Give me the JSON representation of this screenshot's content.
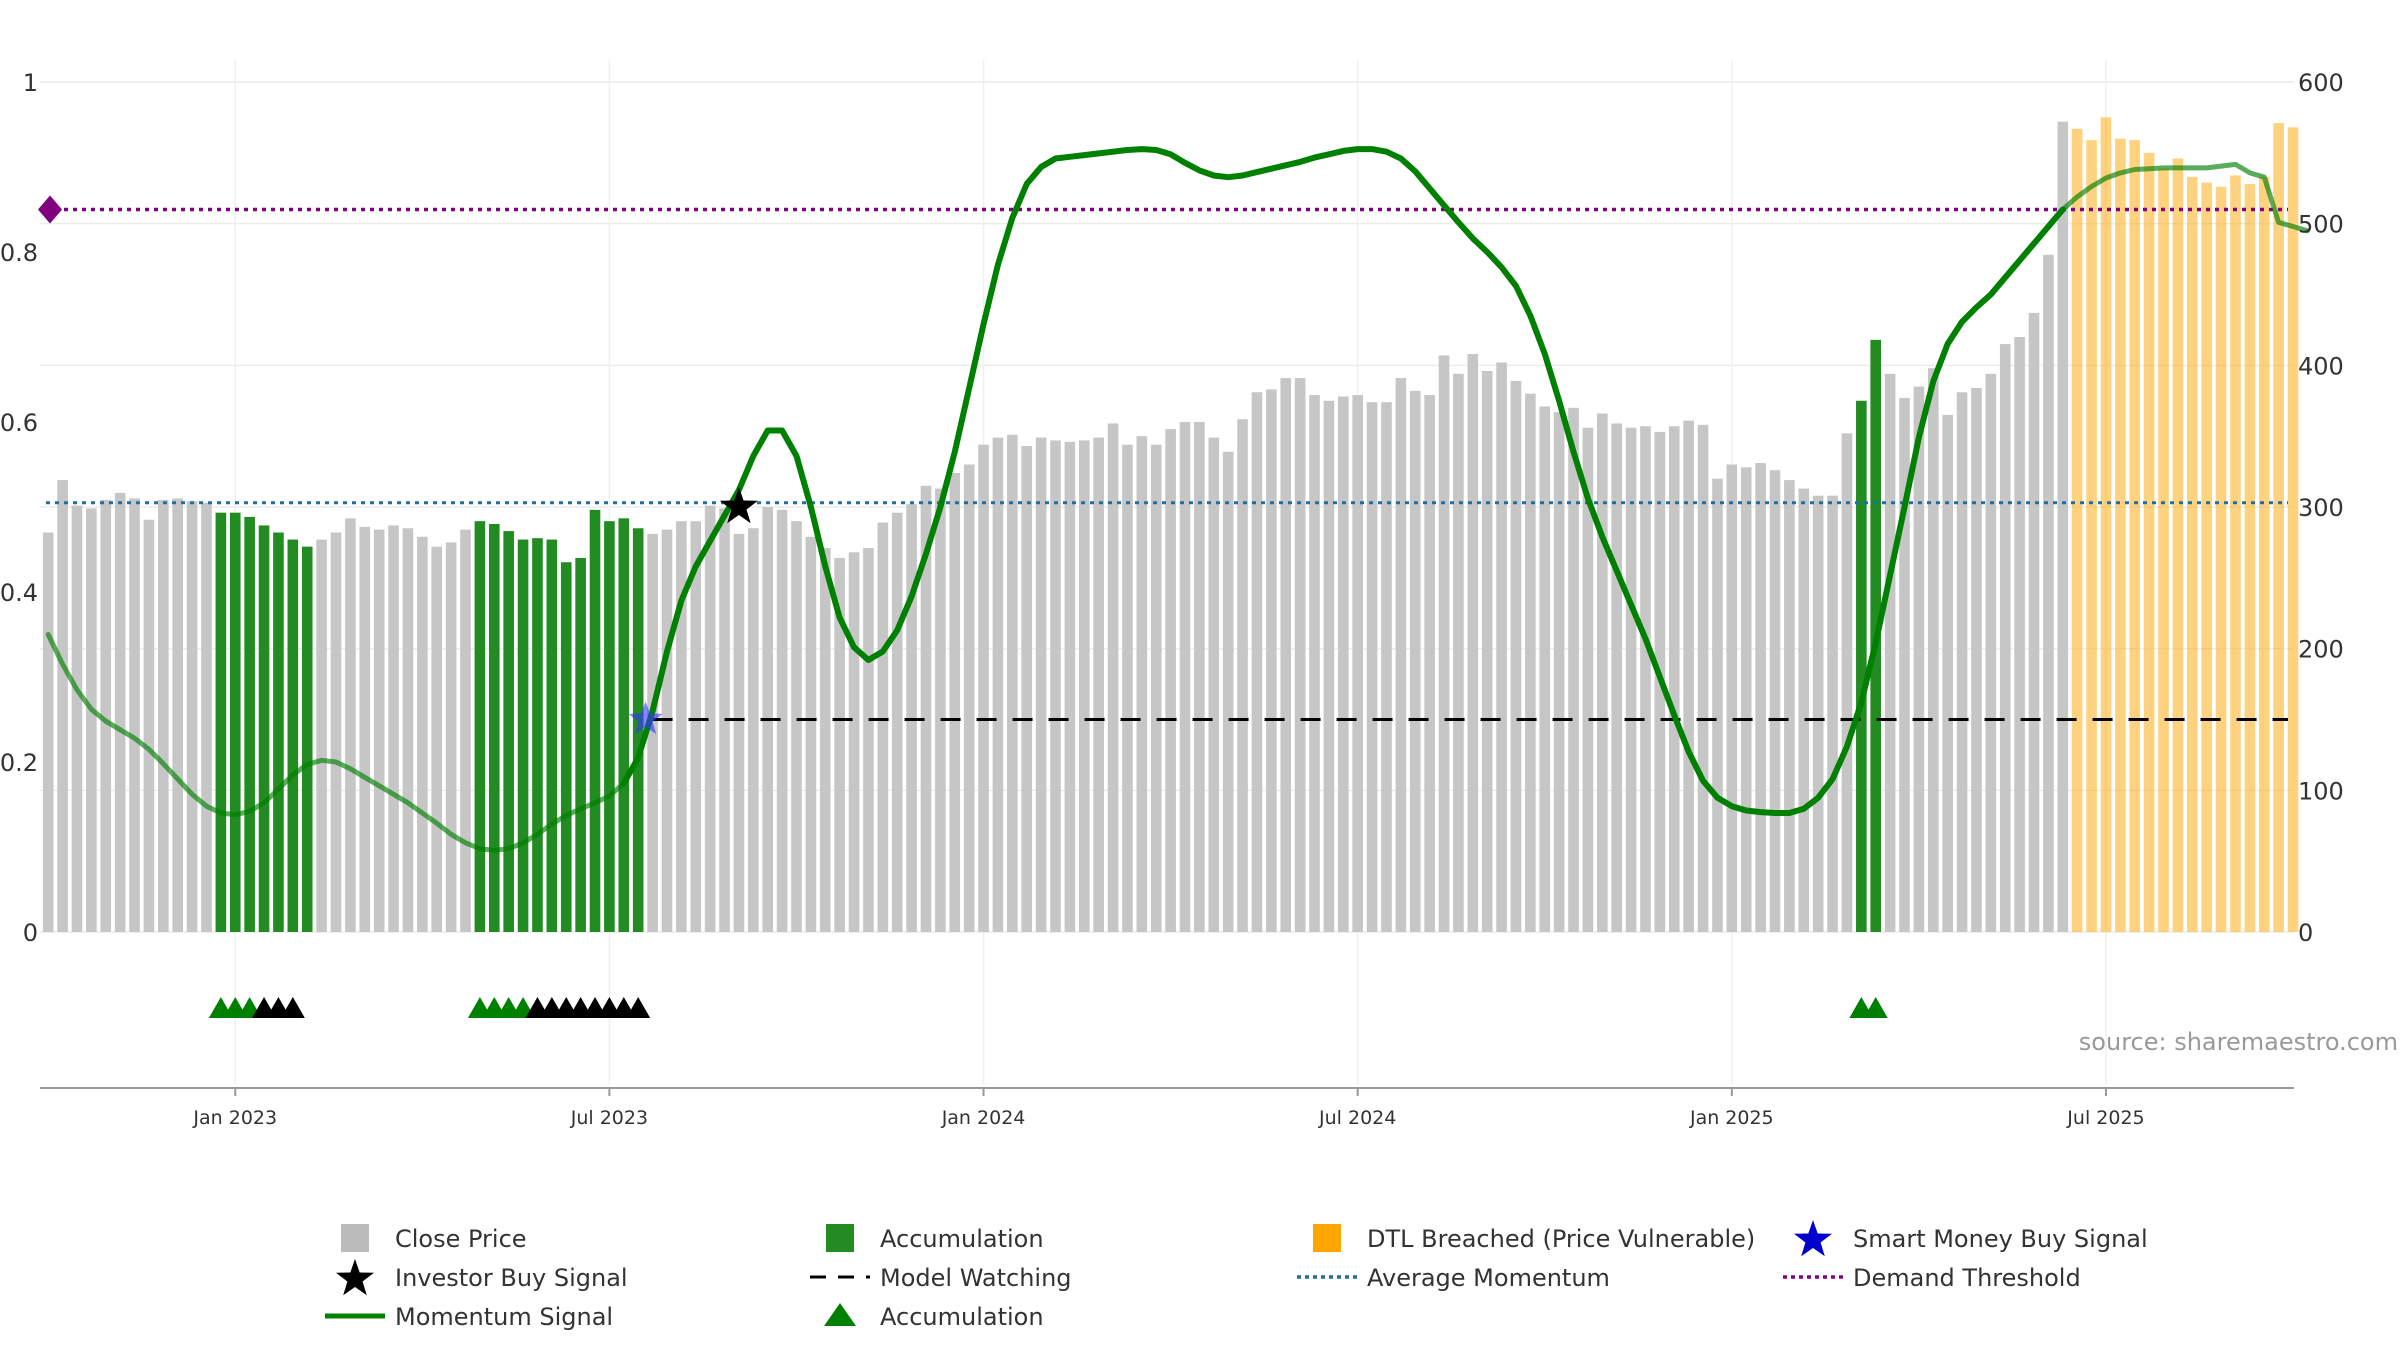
{
  "chart_data": {
    "type": "bar",
    "title": "",
    "source_label": "source: sharemaestro.com",
    "left_axis": {
      "range": [
        0,
        1
      ],
      "ticks": [
        "0",
        "0.2",
        "0.4",
        "0.6",
        "0.8",
        "1"
      ]
    },
    "right_axis": {
      "range": [
        0,
        600
      ],
      "ticks": [
        "0",
        "100",
        "200",
        "300",
        "400",
        "500",
        "600"
      ]
    },
    "x_axis": {
      "ticks": [
        {
          "label": "Jan 2023",
          "bar_index": 13.5
        },
        {
          "label": "Jul 2023",
          "bar_index": 39.5
        },
        {
          "label": "Jan 2024",
          "bar_index": 65.5
        },
        {
          "label": "Jul 2024",
          "bar_index": 91.5
        },
        {
          "label": "Jan 2025",
          "bar_index": 117.5
        },
        {
          "label": "Jul 2025",
          "bar_index": 143.5
        }
      ]
    },
    "close_price": [
      282,
      319,
      301,
      299,
      305,
      310,
      306,
      291,
      305,
      306,
      304,
      303,
      296,
      296,
      293,
      287,
      282,
      277,
      272,
      277,
      282,
      292,
      286,
      284,
      287,
      285,
      279,
      272,
      275,
      284,
      290,
      288,
      283,
      277,
      278,
      277,
      261,
      264,
      298,
      290,
      292,
      285,
      281,
      284,
      290,
      290,
      301,
      299,
      281,
      285,
      300,
      298,
      290,
      279,
      271,
      264,
      268,
      271,
      289,
      296,
      302,
      315,
      313,
      324,
      330,
      344,
      349,
      351,
      343,
      349,
      347,
      346,
      347,
      349,
      359,
      344,
      350,
      344,
      355,
      360,
      360,
      349,
      339,
      362,
      381,
      383,
      391,
      391,
      379,
      375,
      378,
      379,
      374,
      374,
      391,
      382,
      379,
      407,
      394,
      408,
      396,
      402,
      389,
      380,
      371,
      367,
      370,
      356,
      366,
      359,
      356,
      357,
      353,
      357,
      361,
      358,
      320,
      330,
      328,
      331,
      326,
      319,
      313,
      308,
      308,
      352,
      375,
      418,
      394,
      377,
      385,
      398,
      365,
      381,
      384,
      394,
      415,
      420,
      437,
      478,
      572,
      567,
      559,
      575,
      560,
      559,
      550,
      539,
      546,
      533,
      529,
      526,
      534,
      528,
      533,
      571,
      568
    ],
    "accumulation_bars": [
      [
        12,
        18
      ],
      [
        30,
        41
      ],
      [
        126,
        127
      ]
    ],
    "dtl_breached_start": 141,
    "momentum_signal": [
      [
        0,
        0.35
      ],
      [
        1,
        0.315
      ],
      [
        2,
        0.285
      ],
      [
        3,
        0.262
      ],
      [
        4,
        0.248
      ],
      [
        5,
        0.238
      ],
      [
        6,
        0.228
      ],
      [
        7,
        0.215
      ],
      [
        8,
        0.198
      ],
      [
        9,
        0.18
      ],
      [
        10,
        0.162
      ],
      [
        11,
        0.148
      ],
      [
        12,
        0.14
      ],
      [
        13,
        0.138
      ],
      [
        14,
        0.142
      ],
      [
        15,
        0.152
      ],
      [
        16,
        0.168
      ],
      [
        17,
        0.185
      ],
      [
        18,
        0.197
      ],
      [
        19,
        0.202
      ],
      [
        20,
        0.2
      ],
      [
        21,
        0.192
      ],
      [
        22,
        0.182
      ],
      [
        23,
        0.172
      ],
      [
        24,
        0.162
      ],
      [
        25,
        0.152
      ],
      [
        26,
        0.14
      ],
      [
        27,
        0.128
      ],
      [
        28,
        0.115
      ],
      [
        29,
        0.105
      ],
      [
        30,
        0.098
      ],
      [
        31,
        0.096
      ],
      [
        32,
        0.098
      ],
      [
        33,
        0.105
      ],
      [
        34,
        0.115
      ],
      [
        35,
        0.127
      ],
      [
        36,
        0.137
      ],
      [
        37,
        0.145
      ],
      [
        38,
        0.152
      ],
      [
        39,
        0.16
      ],
      [
        40,
        0.175
      ],
      [
        41,
        0.205
      ],
      [
        42,
        0.26
      ],
      [
        43,
        0.33
      ],
      [
        44,
        0.39
      ],
      [
        45,
        0.43
      ],
      [
        46,
        0.46
      ],
      [
        47,
        0.49
      ],
      [
        48,
        0.52
      ],
      [
        49,
        0.56
      ],
      [
        50,
        0.59
      ],
      [
        51,
        0.59
      ],
      [
        52,
        0.56
      ],
      [
        53,
        0.5
      ],
      [
        54,
        0.43
      ],
      [
        55,
        0.37
      ],
      [
        56,
        0.335
      ],
      [
        57,
        0.32
      ],
      [
        58,
        0.33
      ],
      [
        59,
        0.355
      ],
      [
        60,
        0.395
      ],
      [
        61,
        0.445
      ],
      [
        62,
        0.5
      ],
      [
        63,
        0.565
      ],
      [
        64,
        0.64
      ],
      [
        65,
        0.715
      ],
      [
        66,
        0.785
      ],
      [
        67,
        0.84
      ],
      [
        68,
        0.88
      ],
      [
        69,
        0.9
      ],
      [
        70,
        0.91
      ],
      [
        71,
        0.912
      ],
      [
        72,
        0.914
      ],
      [
        73,
        0.916
      ],
      [
        74,
        0.918
      ],
      [
        75,
        0.92
      ],
      [
        76,
        0.921
      ],
      [
        77,
        0.92
      ],
      [
        78,
        0.915
      ],
      [
        79,
        0.905
      ],
      [
        80,
        0.896
      ],
      [
        81,
        0.89
      ],
      [
        82,
        0.888
      ],
      [
        83,
        0.89
      ],
      [
        84,
        0.894
      ],
      [
        85,
        0.898
      ],
      [
        86,
        0.902
      ],
      [
        87,
        0.906
      ],
      [
        88,
        0.911
      ],
      [
        89,
        0.915
      ],
      [
        90,
        0.919
      ],
      [
        91,
        0.921
      ],
      [
        92,
        0.921
      ],
      [
        93,
        0.918
      ],
      [
        94,
        0.91
      ],
      [
        95,
        0.895
      ],
      [
        96,
        0.875
      ],
      [
        97,
        0.855
      ],
      [
        98,
        0.835
      ],
      [
        99,
        0.816
      ],
      [
        100,
        0.8
      ],
      [
        101,
        0.782
      ],
      [
        102,
        0.76
      ],
      [
        103,
        0.725
      ],
      [
        104,
        0.68
      ],
      [
        105,
        0.625
      ],
      [
        106,
        0.565
      ],
      [
        107,
        0.51
      ],
      [
        108,
        0.465
      ],
      [
        109,
        0.425
      ],
      [
        110,
        0.385
      ],
      [
        111,
        0.345
      ],
      [
        112,
        0.3
      ],
      [
        113,
        0.255
      ],
      [
        114,
        0.212
      ],
      [
        115,
        0.178
      ],
      [
        116,
        0.158
      ],
      [
        117,
        0.148
      ],
      [
        118,
        0.143
      ],
      [
        119,
        0.141
      ],
      [
        120,
        0.14
      ],
      [
        121,
        0.14
      ],
      [
        122,
        0.145
      ],
      [
        123,
        0.158
      ],
      [
        124,
        0.18
      ],
      [
        125,
        0.218
      ],
      [
        126,
        0.27
      ],
      [
        127,
        0.34
      ],
      [
        128,
        0.42
      ],
      [
        129,
        0.5
      ],
      [
        130,
        0.582
      ],
      [
        131,
        0.648
      ],
      [
        132,
        0.692
      ],
      [
        133,
        0.718
      ],
      [
        134,
        0.735
      ],
      [
        135,
        0.75
      ],
      [
        136,
        0.77
      ],
      [
        137,
        0.79
      ],
      [
        138,
        0.81
      ],
      [
        139,
        0.83
      ],
      [
        140,
        0.85
      ],
      [
        141,
        0.865
      ],
      [
        142,
        0.877
      ],
      [
        143,
        0.887
      ],
      [
        144,
        0.893
      ],
      [
        145,
        0.897
      ],
      [
        146,
        0.898
      ],
      [
        147,
        0.899
      ],
      [
        148,
        0.899
      ],
      [
        149,
        0.899
      ],
      [
        150,
        0.899
      ],
      [
        151,
        0.901
      ],
      [
        152,
        0.903
      ],
      [
        153,
        0.893
      ],
      [
        154,
        0.888
      ],
      [
        155,
        0.835
      ],
      [
        156,
        0.83
      ],
      [
        157,
        0.825
      ]
    ],
    "momentum_bright_range": [
      40,
      140
    ],
    "average_momentum": 0.505,
    "demand_threshold": 0.85,
    "model_watching_level": 0.25,
    "model_watching_start": 42,
    "investor_buy_signal": [
      [
        48,
        0.5
      ]
    ],
    "smart_money_buy_signal": [
      [
        42,
        0.25
      ]
    ],
    "accumulation_markers": [
      {
        "index": 12,
        "color": "green"
      },
      {
        "index": 13,
        "color": "green"
      },
      {
        "index": 14,
        "color": "green"
      },
      {
        "index": 15,
        "color": "black"
      },
      {
        "index": 16,
        "color": "black"
      },
      {
        "index": 17,
        "color": "black"
      },
      {
        "index": 30,
        "color": "green"
      },
      {
        "index": 31,
        "color": "green"
      },
      {
        "index": 32,
        "color": "green"
      },
      {
        "index": 33,
        "color": "green"
      },
      {
        "index": 34,
        "color": "black"
      },
      {
        "index": 35,
        "color": "black"
      },
      {
        "index": 36,
        "color": "black"
      },
      {
        "index": 37,
        "color": "black"
      },
      {
        "index": 38,
        "color": "black"
      },
      {
        "index": 39,
        "color": "black"
      },
      {
        "index": 40,
        "color": "black"
      },
      {
        "index": 41,
        "color": "black"
      },
      {
        "index": 126,
        "color": "green"
      },
      {
        "index": 127,
        "color": "green"
      }
    ],
    "legend": [
      {
        "label": "Close Price",
        "kind": "square",
        "color": "#bbbbbb"
      },
      {
        "label": "Accumulation",
        "kind": "square",
        "color": "#228b22"
      },
      {
        "label": "DTL Breached (Price Vulnerable)",
        "kind": "square",
        "color": "#ffa500"
      },
      {
        "label": "Smart Money Buy Signal",
        "kind": "star",
        "color": "#0000cc"
      },
      {
        "label": "Investor Buy Signal",
        "kind": "star",
        "color": "#000000"
      },
      {
        "label": "Model Watching",
        "kind": "dash",
        "color": "#000000"
      },
      {
        "label": "Average Momentum",
        "kind": "dot",
        "color": "#1f6fa0"
      },
      {
        "label": "Demand Threshold",
        "kind": "dot",
        "color": "#800080"
      },
      {
        "label": "Momentum Signal",
        "kind": "line",
        "color": "#008000"
      },
      {
        "label": "Accumulation",
        "kind": "triangle",
        "color": "#008000"
      }
    ],
    "colors": {
      "close": "#c6c6c6",
      "accumulation": "#228b22",
      "dtl": "#ffa500",
      "momentum": "#008000",
      "avg": "#1f6fa0",
      "demand": "#800080",
      "smart": "#3333ff",
      "investor": "#000000"
    }
  }
}
